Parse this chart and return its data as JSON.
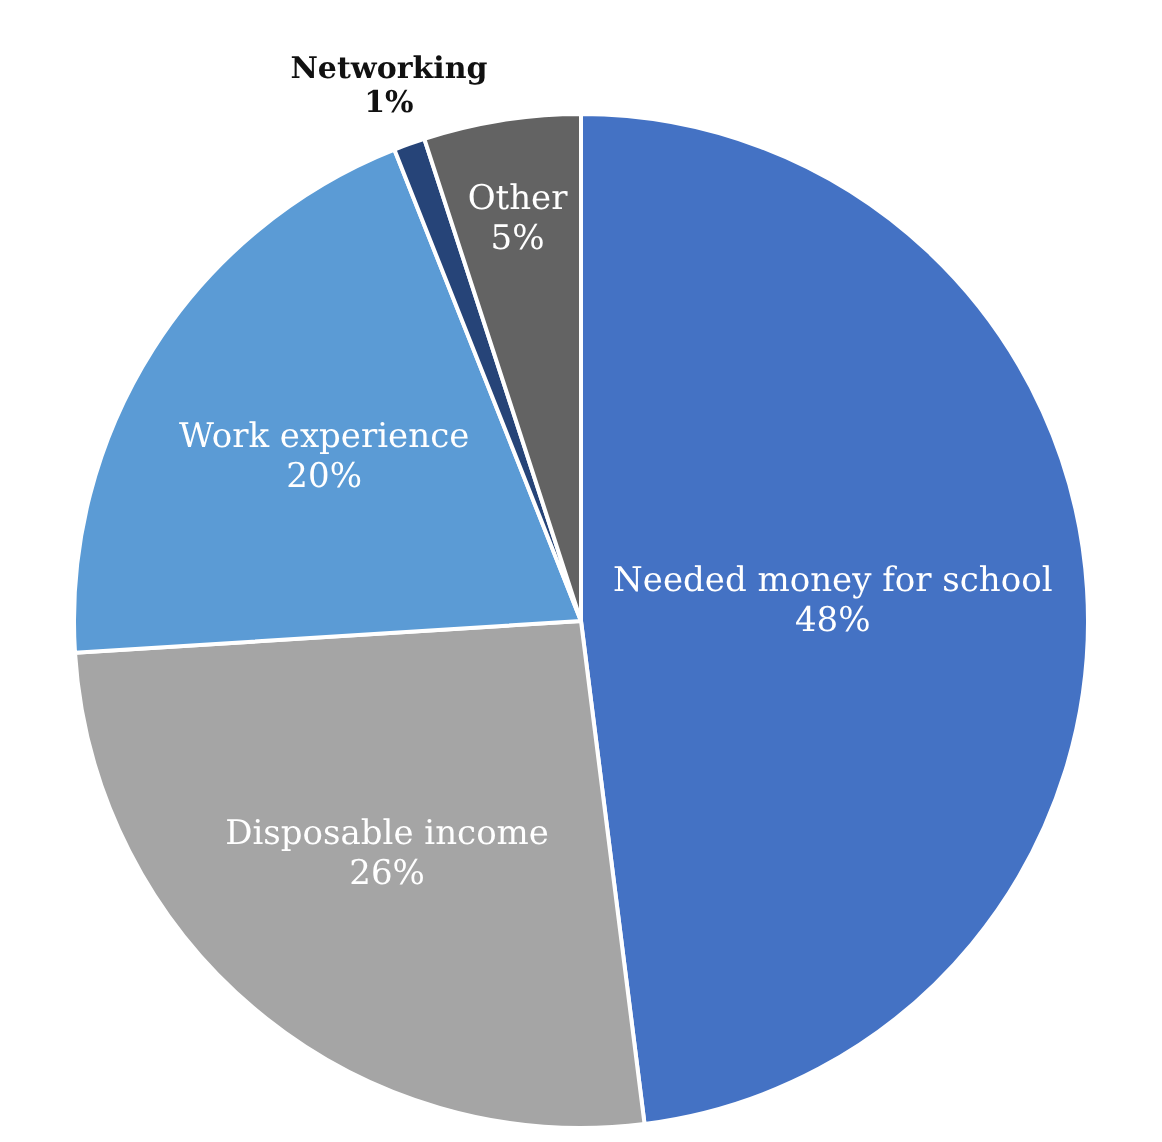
{
  "chart_data": {
    "type": "pie",
    "categories": [
      "Needed money for school",
      "Disposable income",
      "Work experience",
      "Networking",
      "Other"
    ],
    "values": [
      48,
      26,
      20,
      1,
      5
    ],
    "colors": [
      "#4472c4",
      "#a5a5a5",
      "#5b9bd5",
      "#264478",
      "#636363"
    ],
    "value_labels": [
      "48%",
      "26%",
      "20%",
      "1%",
      "5%"
    ],
    "legend": false
  }
}
